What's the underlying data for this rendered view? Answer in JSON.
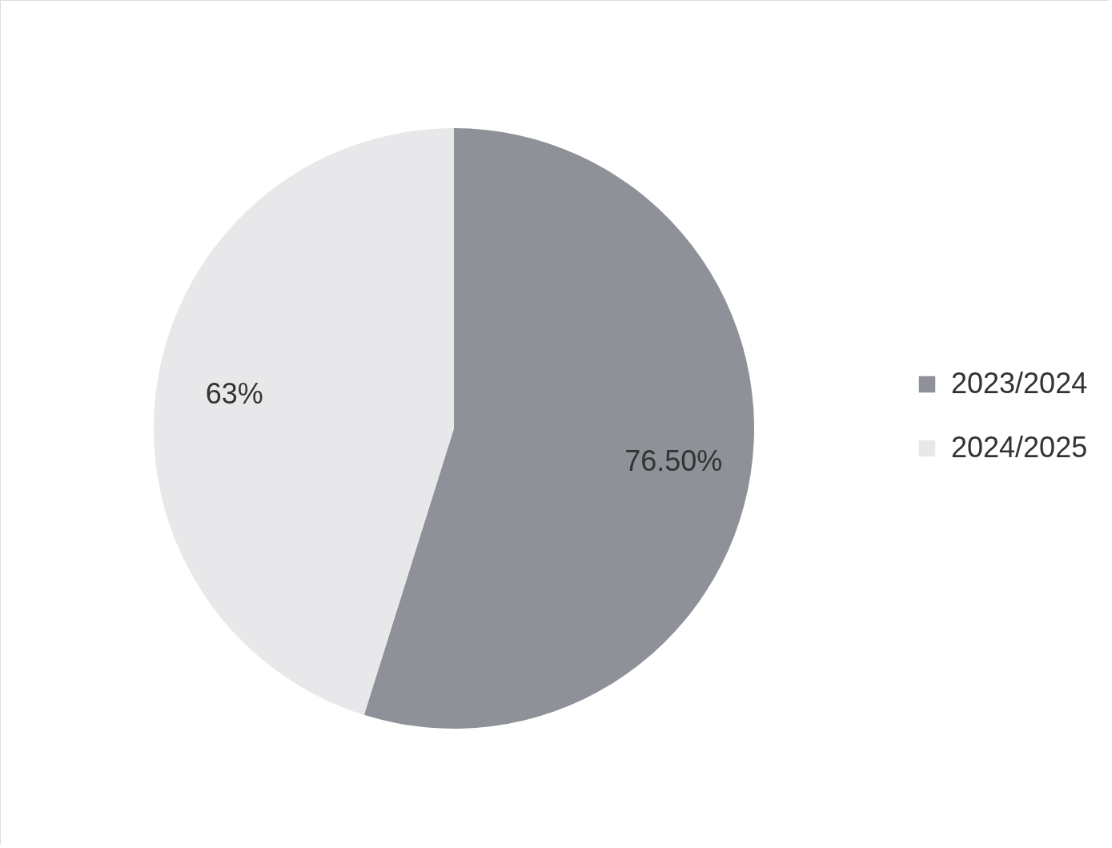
{
  "chart_data": {
    "type": "pie",
    "categories": [
      "2023/2024",
      "2024/2025"
    ],
    "values": [
      76.5,
      63
    ],
    "colors": [
      "#8f9198",
      "#e8e8ea"
    ],
    "value_labels": [
      "76.50%",
      "63%"
    ],
    "legend": "right"
  }
}
